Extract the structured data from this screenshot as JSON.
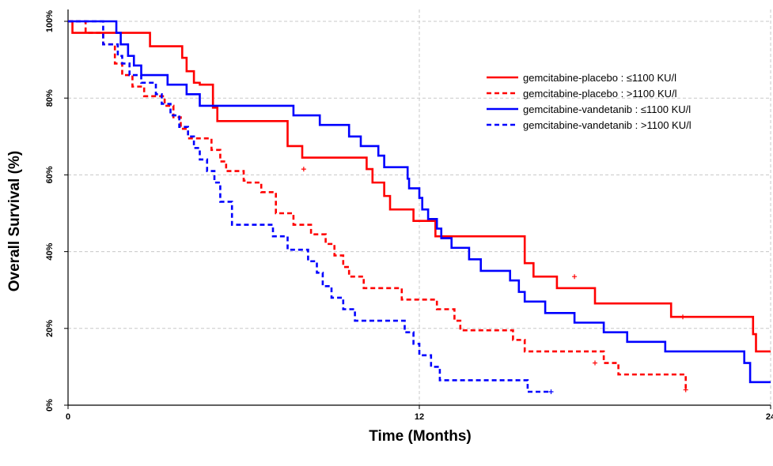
{
  "chart_data": {
    "type": "line",
    "subtype": "kaplan-meier-step",
    "xlabel": "Time (Months)",
    "ylabel": "Overall Survival (%)",
    "xlim": [
      0,
      24
    ],
    "ylim": [
      0,
      100
    ],
    "x_ticks": [
      0,
      12,
      24
    ],
    "y_ticks": [
      0,
      20,
      40,
      60,
      80,
      100
    ],
    "y_tick_labels": [
      "0%",
      "20%",
      "40%",
      "60%",
      "80%",
      "100%"
    ],
    "grid": "dashed-gray",
    "legend_position": "top-right",
    "series": [
      {
        "name": "gemcitabine-placebo : ≤1100 KU/l",
        "color": "#ff0000",
        "style": "solid",
        "x": [
          0,
          0.15,
          1.5,
          2.8,
          3.9,
          4.05,
          4.3,
          4.5,
          4.95,
          5.1,
          7.5,
          8,
          10.2,
          10.4,
          10.8,
          11,
          11.8,
          12.55,
          12.7,
          15.6,
          15.9,
          16.5,
          16.7,
          17.5,
          18.0,
          18.5,
          20.6,
          20.9,
          23.3,
          23.4,
          23.5,
          24
        ],
        "y": [
          100,
          97,
          97,
          93.5,
          90.5,
          87,
          84,
          83.5,
          77.5,
          74,
          67.5,
          64.5,
          61.5,
          58,
          54.5,
          51,
          48,
          44,
          44,
          37,
          33.5,
          33.5,
          30.5,
          30.5,
          26.5,
          26.5,
          23,
          23,
          23,
          18.5,
          14,
          14
        ],
        "censor_x": [
          8.05,
          17.3,
          21.0
        ],
        "censor_y": [
          61.5,
          33.5,
          23
        ]
      },
      {
        "name": "gemcitabine-placebo : >1100 KU/l",
        "color": "#ff0000",
        "style": "dashed",
        "x": [
          0,
          0.4,
          0.6,
          1.0,
          1.2,
          1.6,
          1.85,
          2.2,
          2.6,
          3.0,
          3.3,
          3.6,
          3.85,
          4.1,
          4.6,
          4.9,
          5.2,
          5.4,
          5.7,
          6.0,
          6.1,
          6.6,
          7.1,
          7.4,
          7.7,
          7.9,
          8.3,
          8.6,
          8.8,
          9.1,
          9.4,
          9.6,
          9.8,
          10.1,
          10.4,
          10.9,
          11.4,
          12.1,
          12.6,
          13,
          13.2,
          13.4,
          13.6,
          15.2,
          15.4,
          15.6,
          15.8,
          16.0,
          16.2,
          18.3,
          18.6,
          18.8,
          19.0,
          21.0,
          21.1
        ],
        "y": [
          100,
          100,
          97,
          97,
          94,
          89,
          86,
          83,
          80.5,
          80.5,
          78,
          75,
          72,
          69.5,
          69.5,
          66.5,
          63.5,
          61,
          61,
          58.5,
          58,
          55.5,
          50,
          50,
          47,
          47,
          44.5,
          44.5,
          42,
          39,
          36,
          33.5,
          33.5,
          30.5,
          30.5,
          30.5,
          27.5,
          27.5,
          25,
          25,
          22,
          19.5,
          19.5,
          17,
          17,
          14,
          14,
          14,
          14,
          11,
          11,
          8,
          8,
          8,
          4
        ],
        "censor_x": [
          18.0,
          21.1
        ],
        "censor_y": [
          11,
          4
        ]
      },
      {
        "name": "gemcitabine-vandetanib : ≤1100 KU/l",
        "color": "#0000ff",
        "style": "solid",
        "x": [
          0,
          1.5,
          1.65,
          1.8,
          2.05,
          2.25,
          2.5,
          3.1,
          3.4,
          3.65,
          4.0,
          4.05,
          4.5,
          5.4,
          6.2,
          7.7,
          8.6,
          9.0,
          9.6,
          10.0,
          10.3,
          10.6,
          10.8,
          11.0,
          11.6,
          11.65,
          11.8,
          12.0,
          12.1,
          12.3,
          12.6,
          12.75,
          13.1,
          13.4,
          13.7,
          14.1,
          14.7,
          15.1,
          15.4,
          15.6,
          16.0,
          16.3,
          17.3,
          18.0,
          18.3,
          19.1,
          20.4,
          21.9,
          22.4,
          23.1,
          23.3,
          24
        ],
        "y": [
          100,
          100,
          97,
          94,
          91,
          88.5,
          86,
          86,
          83.5,
          83.5,
          83.5,
          81,
          78,
          78,
          78,
          75.5,
          73,
          73,
          70,
          67.5,
          67.5,
          65,
          62,
          62,
          59,
          56.5,
          56.5,
          54,
          51,
          48.5,
          46,
          43.5,
          41,
          41,
          38,
          35,
          35,
          32.5,
          29.5,
          27,
          27,
          24,
          21.5,
          21.5,
          19,
          16.5,
          14,
          14,
          14,
          11,
          6,
          6
        ],
        "censor_x": [],
        "censor_y": []
      },
      {
        "name": "gemcitabine-vandetanib : >1100 KU/l",
        "color": "#0000ff",
        "style": "dashed",
        "x": [
          0,
          0.8,
          1.2,
          1.5,
          1.7,
          1.85,
          2.1,
          2.5,
          3.0,
          3.2,
          3.5,
          3.8,
          4.1,
          4.3,
          4.5,
          4.75,
          5.0,
          5.2,
          5.6,
          6.0,
          7.0,
          7.3,
          7.5,
          8.0,
          8.2,
          8.5,
          8.7,
          9.0,
          9.4,
          9.8,
          10.0,
          11.0,
          11.5,
          11.8,
          12.0,
          12.2,
          12.4,
          12.7,
          13.0,
          13.4,
          13.8,
          15.7,
          15.9,
          16.0,
          16.5
        ],
        "y": [
          100,
          100,
          94,
          94,
          91,
          89,
          86,
          84,
          81,
          78.5,
          75.5,
          72.5,
          70,
          67,
          64,
          61,
          58,
          53,
          47,
          47,
          44,
          44,
          40.5,
          40.5,
          37.5,
          34.5,
          31,
          28,
          25,
          22,
          22,
          22,
          19,
          16,
          13,
          13,
          10,
          6.5,
          6.5,
          6.5,
          6.5,
          3.5,
          3.5,
          3.5,
          3.5
        ],
        "censor_x": [
          16.5
        ],
        "censor_y": [
          3.5
        ]
      }
    ]
  }
}
